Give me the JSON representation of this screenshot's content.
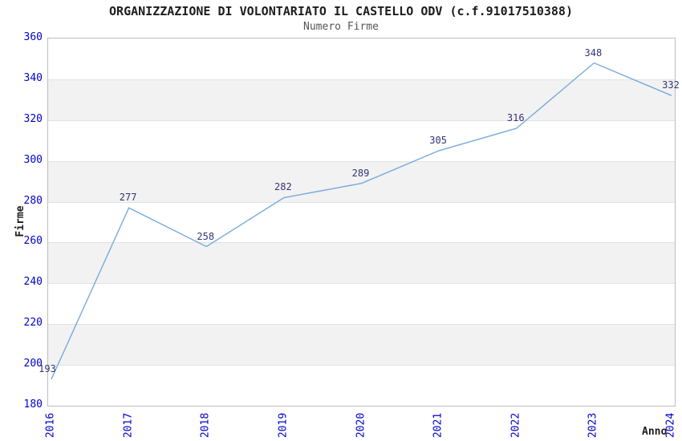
{
  "chart_data": {
    "type": "line",
    "title": "ORGANIZZAZIONE DI VOLONTARIATO IL CASTELLO ODV (c.f.91017510388)",
    "subtitle": "Numero Firme",
    "xlabel": "Anno",
    "ylabel": "Firme",
    "categories": [
      "2016",
      "2017",
      "2018",
      "2019",
      "2020",
      "2021",
      "2022",
      "2023",
      "2024"
    ],
    "series": [
      {
        "name": "Numero Firme",
        "values": [
          193,
          277,
          258,
          282,
          289,
          305,
          316,
          348,
          332
        ]
      }
    ],
    "ylim": [
      180,
      360
    ],
    "ytick_step": 20,
    "yticks": [
      180,
      200,
      220,
      240,
      260,
      280,
      300,
      320,
      340,
      360
    ],
    "grid": true,
    "legend_position": "none",
    "data_labels_visible": true,
    "colors": {
      "line": "#76aade",
      "tick_label": "#0000cc",
      "data_label": "#333377",
      "band_fill": "#f2f2f2",
      "gridline": "#e2e2e2",
      "plot_border": "#bdbdbd",
      "title_text": "#1c1c1c",
      "subtitle_text": "#555555",
      "background": "#ffffff"
    }
  }
}
